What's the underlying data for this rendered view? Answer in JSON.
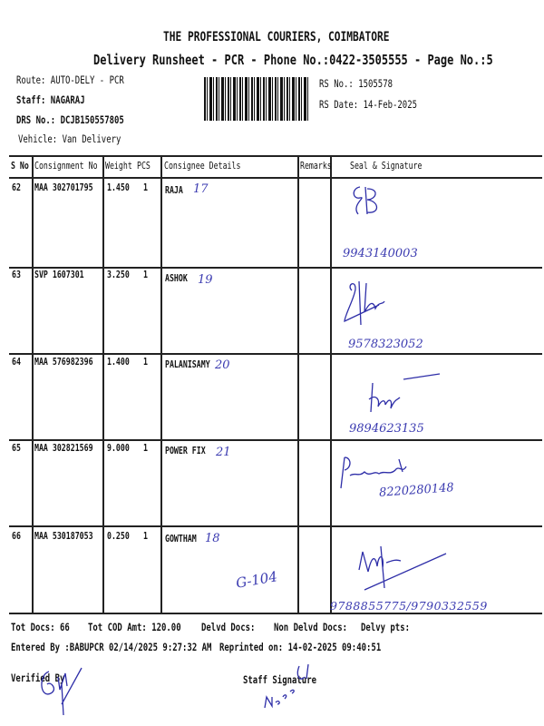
{
  "header": {
    "company": "THE PROFESSIONAL COURIERS, COIMBATORE",
    "subtitle": "Delivery Runsheet - PCR - Phone No.:0422-3505555 - Page No.:5",
    "route": "Route: AUTO-DELY - PCR",
    "staff": "Staff: NAGARAJ",
    "drs_no": "DRS No.: DCJB150557805",
    "vehicle": "Vehicle: Van Delivery",
    "rs_no": "RS No.: 1505578",
    "rs_date": "RS Date: 14-Feb-2025"
  },
  "table": {
    "columns": [
      "S No",
      "Consignment No",
      "Weight",
      "PCS",
      "Consignee Details",
      "Remarks",
      "Seal & Signature"
    ],
    "rows": [
      {
        "sno": "62",
        "consignment": "MAA 302701795",
        "weight": "1.450",
        "pcs": "1",
        "consignee": "RAJA",
        "hand_note": "17",
        "phone": "9943140003"
      },
      {
        "sno": "63",
        "consignment": "SVP 1607301",
        "weight": "3.250",
        "pcs": "1",
        "consignee": "ASHOK",
        "hand_note": "19",
        "phone": "9578323052"
      },
      {
        "sno": "64",
        "consignment": "MAA 576982396",
        "weight": "1.400",
        "pcs": "1",
        "consignee": "PALANISAMY",
        "hand_note": "20",
        "phone": "9894623135"
      },
      {
        "sno": "65",
        "consignment": "MAA 302821569",
        "weight": "9.000",
        "pcs": "1",
        "consignee": "POWER FIX",
        "hand_note": "21",
        "phone": "8220280148"
      },
      {
        "sno": "66",
        "consignment": "MAA 530187053",
        "weight": "0.250",
        "pcs": "1",
        "consignee": "GOWTHAM",
        "hand_note": "18",
        "extra_note": "G-104",
        "phone": "9788855775/9790332559"
      }
    ]
  },
  "footer": {
    "tot_docs": "Tot Docs:  66",
    "tot_cod": "Tot COD Amt:  120.00",
    "delvd": "Delvd Docs:",
    "non_delvd": "Non Delvd Docs:",
    "delvy_pts": "Delvy pts:",
    "entered_by": "Entered By :BABUPCR 02/14/2025 9:27:32 AM",
    "reprinted": "Reprinted on: 14-02-2025 09:40:51",
    "verified_by": "Verified By",
    "staff_signature": "Staff Signature"
  },
  "colors": {
    "ink": "#111111",
    "handwriting": "#3a3ab0"
  }
}
